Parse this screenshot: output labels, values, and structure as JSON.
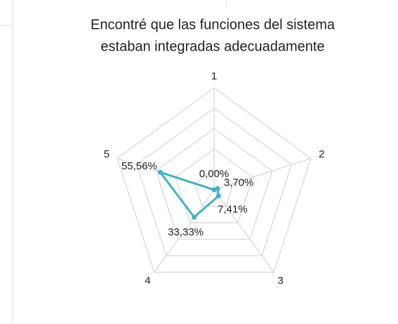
{
  "chart_data": {
    "type": "radar",
    "title": [
      "Encontré que las funciones del sistema",
      "estaban integradas adecuadamente"
    ],
    "categories": [
      "1",
      "2",
      "3",
      "4",
      "5"
    ],
    "values": [
      0,
      3.7,
      7.41,
      33.33,
      55.56
    ],
    "value_labels": [
      "0,00%",
      "3,70%",
      "7,41%",
      "33,33%",
      "55,56%"
    ],
    "color": "#3fb4c3",
    "ylim": [
      0,
      100
    ],
    "yticks": [
      0,
      20,
      40,
      60,
      80,
      100
    ],
    "grid": true
  }
}
